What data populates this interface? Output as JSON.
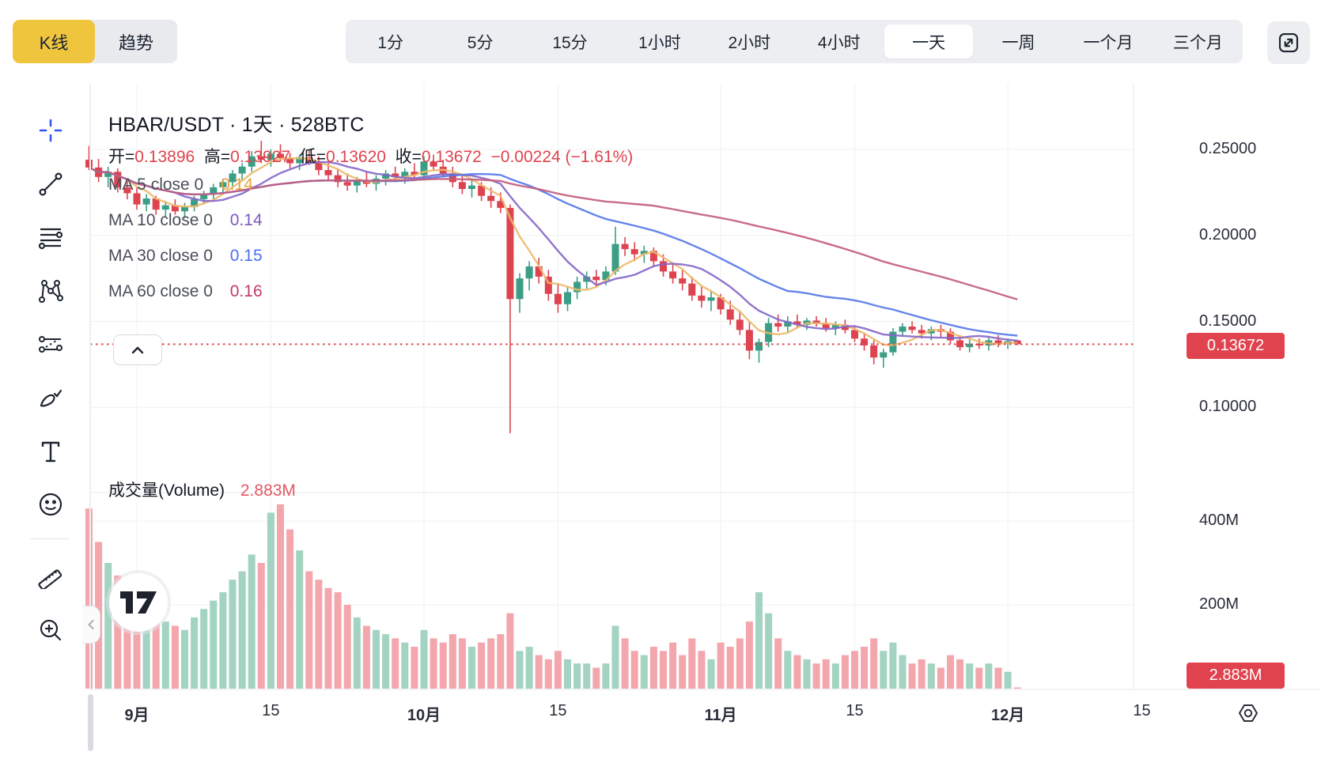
{
  "toolbar": {
    "chart_type_tabs": [
      {
        "label": "K线",
        "active": true
      },
      {
        "label": "趋势",
        "active": false
      }
    ],
    "timeframes": [
      {
        "label": "1分",
        "active": false
      },
      {
        "label": "5分",
        "active": false
      },
      {
        "label": "15分",
        "active": false
      },
      {
        "label": "1小时",
        "active": false
      },
      {
        "label": "2小时",
        "active": false
      },
      {
        "label": "4小时",
        "active": false
      },
      {
        "label": "一天",
        "active": true
      },
      {
        "label": "一周",
        "active": false
      },
      {
        "label": "一个月",
        "active": false
      },
      {
        "label": "三个月",
        "active": false
      }
    ],
    "fullscreen_icon": "expand-icon"
  },
  "sidebar": {
    "tools": [
      "crosshair",
      "trend-line",
      "horizontal-lines",
      "xabcd-pattern",
      "forecast-lines",
      "brush",
      "text",
      "emoji",
      "ruler",
      "zoom-in"
    ]
  },
  "chart": {
    "title": "HBAR/USDT · 1天 · 528BTC",
    "ohlc": {
      "open_label": "开=",
      "open": "0.13896",
      "high_label": "高=",
      "high": "0.13927",
      "low_label": "低=",
      "low": "0.13620",
      "close_label": "收=",
      "close": "0.13672",
      "change": "−0.00224 (−1.61%)"
    },
    "ma_legend": [
      {
        "label": "MA 5 close 0",
        "value": "0.14",
        "color": "#E8A33D"
      },
      {
        "label": "MA 10 close 0",
        "value": "0.14",
        "color": "#7E57C2"
      },
      {
        "label": "MA 30 close 0",
        "value": "0.15",
        "color": "#4C6EF5"
      },
      {
        "label": "MA 60 close 0",
        "value": "0.16",
        "color": "#C13A6B"
      }
    ],
    "price_badge": "0.13672",
    "volume": {
      "label": "成交量(Volume)",
      "value": "2.883M",
      "badge": "2.883M"
    }
  },
  "chart_data": {
    "type": "candlestick+volume",
    "symbol": "HBAR/USDT",
    "interval": "1天",
    "price_axis": {
      "ticks": [
        {
          "p": 0.25,
          "label": "0.25000"
        },
        {
          "p": 0.2,
          "label": "0.20000"
        },
        {
          "p": 0.15,
          "label": "0.15000"
        },
        {
          "p": 0.1,
          "label": "0.10000"
        }
      ],
      "current_price": 0.13672
    },
    "volume_axis": {
      "ticks": [
        {
          "v": 400,
          "label": "400M"
        },
        {
          "v": 200,
          "label": "200M"
        }
      ],
      "current_volume_m": 2.883
    },
    "time_axis": {
      "ticks": [
        {
          "i": 5,
          "label": "9月",
          "bold": true
        },
        {
          "i": 19,
          "label": "15",
          "bold": false
        },
        {
          "i": 35,
          "label": "10月",
          "bold": true
        },
        {
          "i": 49,
          "label": "15",
          "bold": false
        },
        {
          "i": 66,
          "label": "11月",
          "bold": true
        },
        {
          "i": 80,
          "label": "15",
          "bold": false
        },
        {
          "i": 96,
          "label": "12月",
          "bold": true
        },
        {
          "i": 110,
          "label": "15",
          "bold": false
        }
      ]
    },
    "moving_averages": [
      {
        "name": "MA5",
        "window": 5,
        "color": "#EDB96A"
      },
      {
        "name": "MA10",
        "window": 10,
        "color": "#8566C9"
      },
      {
        "name": "MA30",
        "window": 30,
        "color": "#5578E8"
      },
      {
        "name": "MA60",
        "window": 60,
        "color": "#C25C7C"
      }
    ],
    "colors": {
      "up": "#3C9E85",
      "down": "#DD4450",
      "volume_up": "#A3D3C1",
      "volume_down": "#F4A6AD",
      "accent_red": "#E0434E",
      "grid": "#F0F1F4",
      "separator": "#E6E8EB",
      "selected_yellow": "#F0C53E",
      "crosshair_blue": "#2F55F2"
    },
    "candles_ohlcv_millions": [
      [
        0.244,
        0.252,
        0.238,
        0.2395,
        430
      ],
      [
        0.2395,
        0.2445,
        0.231,
        0.234,
        350
      ],
      [
        0.234,
        0.24,
        0.228,
        0.237,
        300
      ],
      [
        0.237,
        0.239,
        0.225,
        0.228,
        270
      ],
      [
        0.228,
        0.233,
        0.221,
        0.2245,
        240
      ],
      [
        0.2245,
        0.228,
        0.215,
        0.218,
        260
      ],
      [
        0.218,
        0.224,
        0.214,
        0.2215,
        180
      ],
      [
        0.2215,
        0.223,
        0.212,
        0.215,
        200
      ],
      [
        0.215,
        0.22,
        0.211,
        0.2175,
        160
      ],
      [
        0.2175,
        0.221,
        0.212,
        0.214,
        150
      ],
      [
        0.214,
        0.219,
        0.21,
        0.2165,
        140
      ],
      [
        0.2165,
        0.223,
        0.214,
        0.221,
        170
      ],
      [
        0.221,
        0.226,
        0.218,
        0.224,
        190
      ],
      [
        0.224,
        0.23,
        0.221,
        0.228,
        210
      ],
      [
        0.228,
        0.233,
        0.224,
        0.231,
        230
      ],
      [
        0.231,
        0.238,
        0.228,
        0.236,
        260
      ],
      [
        0.236,
        0.242,
        0.232,
        0.24,
        280
      ],
      [
        0.24,
        0.249,
        0.237,
        0.246,
        320
      ],
      [
        0.246,
        0.255,
        0.242,
        0.244,
        300
      ],
      [
        0.244,
        0.25,
        0.24,
        0.2475,
        420
      ],
      [
        0.2475,
        0.253,
        0.243,
        0.245,
        440
      ],
      [
        0.245,
        0.248,
        0.239,
        0.242,
        380
      ],
      [
        0.242,
        0.247,
        0.238,
        0.2455,
        330
      ],
      [
        0.2455,
        0.25,
        0.241,
        0.243,
        280
      ],
      [
        0.243,
        0.246,
        0.235,
        0.238,
        260
      ],
      [
        0.238,
        0.242,
        0.232,
        0.235,
        240
      ],
      [
        0.235,
        0.239,
        0.228,
        0.231,
        230
      ],
      [
        0.231,
        0.236,
        0.226,
        0.229,
        200
      ],
      [
        0.229,
        0.234,
        0.225,
        0.232,
        170
      ],
      [
        0.232,
        0.237,
        0.228,
        0.23,
        150
      ],
      [
        0.23,
        0.235,
        0.226,
        0.233,
        140
      ],
      [
        0.233,
        0.238,
        0.229,
        0.236,
        130
      ],
      [
        0.236,
        0.24,
        0.231,
        0.234,
        120
      ],
      [
        0.234,
        0.239,
        0.23,
        0.237,
        110
      ],
      [
        0.237,
        0.242,
        0.233,
        0.235,
        100
      ],
      [
        0.235,
        0.246,
        0.232,
        0.243,
        140
      ],
      [
        0.243,
        0.247,
        0.238,
        0.24,
        120
      ],
      [
        0.24,
        0.244,
        0.234,
        0.236,
        110
      ],
      [
        0.236,
        0.24,
        0.228,
        0.231,
        130
      ],
      [
        0.231,
        0.235,
        0.224,
        0.227,
        120
      ],
      [
        0.227,
        0.232,
        0.222,
        0.229,
        100
      ],
      [
        0.229,
        0.231,
        0.22,
        0.223,
        110
      ],
      [
        0.223,
        0.228,
        0.216,
        0.22,
        120
      ],
      [
        0.22,
        0.225,
        0.213,
        0.216,
        130
      ],
      [
        0.216,
        0.218,
        0.085,
        0.163,
        180
      ],
      [
        0.163,
        0.178,
        0.155,
        0.175,
        90
      ],
      [
        0.175,
        0.185,
        0.168,
        0.182,
        100
      ],
      [
        0.182,
        0.187,
        0.172,
        0.176,
        80
      ],
      [
        0.176,
        0.18,
        0.162,
        0.166,
        70
      ],
      [
        0.166,
        0.172,
        0.155,
        0.16,
        90
      ],
      [
        0.16,
        0.17,
        0.156,
        0.167,
        70
      ],
      [
        0.167,
        0.176,
        0.163,
        0.173,
        60
      ],
      [
        0.173,
        0.179,
        0.169,
        0.176,
        60
      ],
      [
        0.176,
        0.18,
        0.17,
        0.174,
        50
      ],
      [
        0.174,
        0.182,
        0.171,
        0.179,
        60
      ],
      [
        0.179,
        0.205,
        0.177,
        0.195,
        150
      ],
      [
        0.195,
        0.199,
        0.188,
        0.192,
        120
      ],
      [
        0.192,
        0.196,
        0.185,
        0.189,
        90
      ],
      [
        0.189,
        0.194,
        0.184,
        0.191,
        80
      ],
      [
        0.191,
        0.193,
        0.182,
        0.185,
        100
      ],
      [
        0.185,
        0.189,
        0.176,
        0.179,
        90
      ],
      [
        0.179,
        0.183,
        0.172,
        0.175,
        110
      ],
      [
        0.175,
        0.18,
        0.168,
        0.172,
        80
      ],
      [
        0.172,
        0.176,
        0.162,
        0.165,
        120
      ],
      [
        0.165,
        0.17,
        0.158,
        0.162,
        90
      ],
      [
        0.162,
        0.168,
        0.156,
        0.164,
        70
      ],
      [
        0.164,
        0.166,
        0.154,
        0.157,
        110
      ],
      [
        0.157,
        0.162,
        0.148,
        0.151,
        100
      ],
      [
        0.151,
        0.156,
        0.142,
        0.145,
        120
      ],
      [
        0.145,
        0.15,
        0.128,
        0.133,
        160
      ],
      [
        0.133,
        0.14,
        0.126,
        0.138,
        230
      ],
      [
        0.138,
        0.152,
        0.135,
        0.149,
        180
      ],
      [
        0.149,
        0.154,
        0.144,
        0.147,
        120
      ],
      [
        0.147,
        0.153,
        0.144,
        0.15,
        90
      ],
      [
        0.15,
        0.154,
        0.146,
        0.148,
        80
      ],
      [
        0.148,
        0.152,
        0.145,
        0.1505,
        70
      ],
      [
        0.1505,
        0.153,
        0.147,
        0.149,
        60
      ],
      [
        0.149,
        0.152,
        0.144,
        0.146,
        70
      ],
      [
        0.146,
        0.15,
        0.142,
        0.148,
        60
      ],
      [
        0.148,
        0.151,
        0.143,
        0.145,
        80
      ],
      [
        0.145,
        0.147,
        0.138,
        0.14,
        90
      ],
      [
        0.14,
        0.143,
        0.133,
        0.136,
        100
      ],
      [
        0.136,
        0.139,
        0.125,
        0.129,
        120
      ],
      [
        0.129,
        0.134,
        0.123,
        0.132,
        90
      ],
      [
        0.132,
        0.146,
        0.13,
        0.144,
        110
      ],
      [
        0.144,
        0.149,
        0.141,
        0.147,
        80
      ],
      [
        0.147,
        0.15,
        0.143,
        0.145,
        60
      ],
      [
        0.145,
        0.148,
        0.14,
        0.143,
        70
      ],
      [
        0.143,
        0.147,
        0.139,
        0.1455,
        60
      ],
      [
        0.1455,
        0.148,
        0.141,
        0.144,
        50
      ],
      [
        0.144,
        0.146,
        0.137,
        0.139,
        80
      ],
      [
        0.139,
        0.142,
        0.133,
        0.135,
        70
      ],
      [
        0.135,
        0.14,
        0.132,
        0.137,
        60
      ],
      [
        0.137,
        0.14,
        0.134,
        0.136,
        50
      ],
      [
        0.136,
        0.141,
        0.133,
        0.139,
        60
      ],
      [
        0.139,
        0.142,
        0.135,
        0.137,
        50
      ],
      [
        0.137,
        0.14,
        0.134,
        0.1385,
        40
      ],
      [
        0.13896,
        0.13927,
        0.1362,
        0.13672,
        2.883
      ]
    ]
  }
}
